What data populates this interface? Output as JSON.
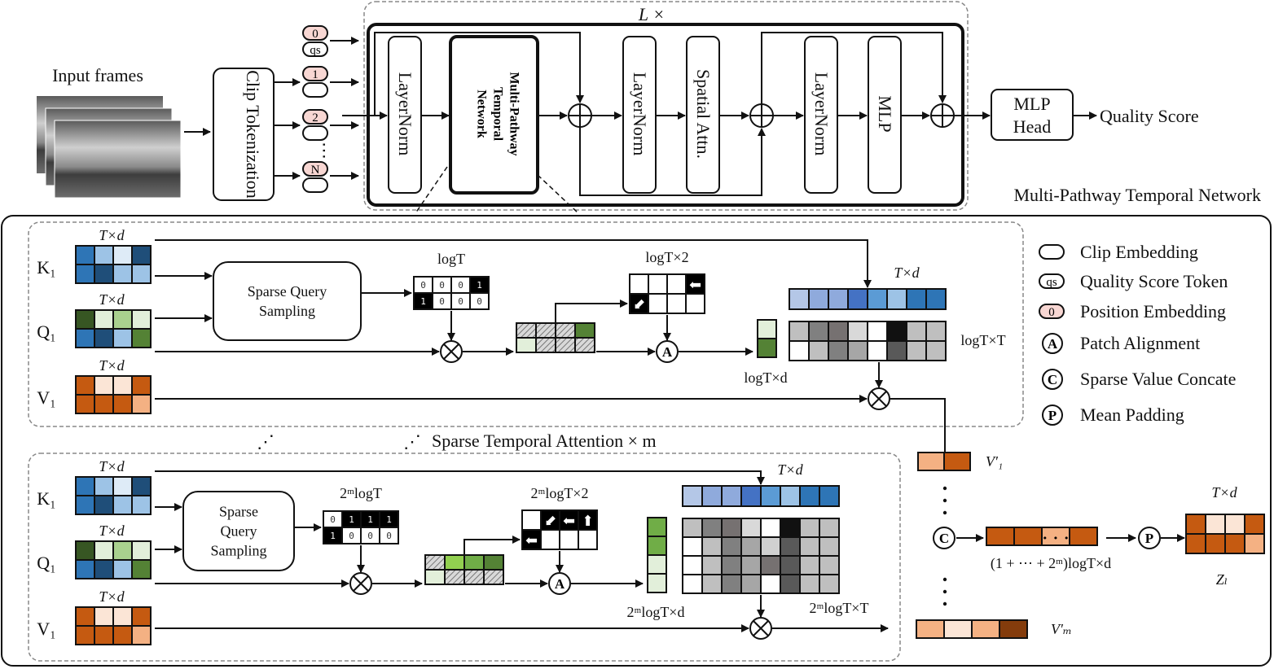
{
  "top": {
    "input_frames": "Input frames",
    "clip_tokenization": "Clip Tokenization",
    "tokens": {
      "pos0": "0",
      "qs": "qs",
      "pos1": "1",
      "pos2": "2",
      "posN": "N",
      "ellipsis": "⋯"
    },
    "repeat_label": "L ×",
    "layernorm": "LayerNorm",
    "mptn": [
      "Multi-Pathway",
      "Temporal",
      "Network"
    ],
    "spatial_attn": "Spatial Attn.",
    "mlp": "MLP",
    "mlp_head": [
      "MLP",
      "Head"
    ],
    "quality_score": "Quality Score",
    "mptn_caption": "Multi-Pathway Temporal Network"
  },
  "pathway1": {
    "k_label": "K₁",
    "q_label": "Q₁",
    "v_label": "V₁",
    "txd": "T×d",
    "sampler": [
      "Sparse Query",
      "Sampling"
    ],
    "mask_label": "logT",
    "mask": [
      [
        "0",
        "0",
        "0",
        "1"
      ],
      [
        "1",
        "0",
        "0",
        "0"
      ]
    ],
    "offset_label": "logT×2",
    "sampled_label": "logT×d",
    "attn_label": "logT×T",
    "key_label": "T×d"
  },
  "middle": {
    "dots": "⋰",
    "caption": "Sparse Temporal Attention × m"
  },
  "pathway2": {
    "k_label": "K₁",
    "q_label": "Q₁",
    "v_label": "V₁",
    "txd": "T×d",
    "sampler": [
      "Sparse",
      "Query",
      "Sampling"
    ],
    "mask_label": "2ᵐlogT",
    "mask": [
      [
        "0",
        "1",
        "1",
        "1"
      ],
      [
        "1",
        "0",
        "0",
        "0"
      ]
    ],
    "offset_label": "2ᵐlogT×2",
    "sampled_label": "2ᵐlogT×d",
    "attn_label": "2ᵐlogT×T",
    "key_label": "T×d"
  },
  "output": {
    "v1_label": "V′₁",
    "vm_label": "V′ₘ",
    "concat_label": "(1 + ⋯ + 2ᵐ)logT×d",
    "z_size": "T×d",
    "z_label": "Zₗ",
    "concat_dots": "• • •"
  },
  "legend": [
    {
      "icon": "clip-embedding-pill",
      "label": "Clip Embedding"
    },
    {
      "icon": "quality-score-token-pill",
      "symbol": "qs",
      "label": "Quality Score Token"
    },
    {
      "icon": "position-embedding-pill",
      "symbol": "0",
      "label": "Position Embedding"
    },
    {
      "icon": "circle-a-icon",
      "symbol": "A",
      "label": "Patch Alignment"
    },
    {
      "icon": "circle-c-icon",
      "symbol": "C",
      "label": "Sparse Value Concate"
    },
    {
      "icon": "circle-p-icon",
      "symbol": "P",
      "label": "Mean Padding"
    }
  ],
  "colors": {
    "blue_dark": "#1f4e79",
    "blue": "#2e75b6",
    "blue_light": "#9dc3e6",
    "blue_pale": "#deebf7",
    "green_dark": "#375623",
    "green": "#548235",
    "green_mid": "#a9d18e",
    "green_pale": "#e2efda",
    "green_bright": "#92d050",
    "orange": "#c55a11",
    "orange_light": "#f4b183",
    "orange_pale": "#fbe5d6",
    "orange_dark": "#843c0c",
    "pink": "#f8d7d3"
  }
}
